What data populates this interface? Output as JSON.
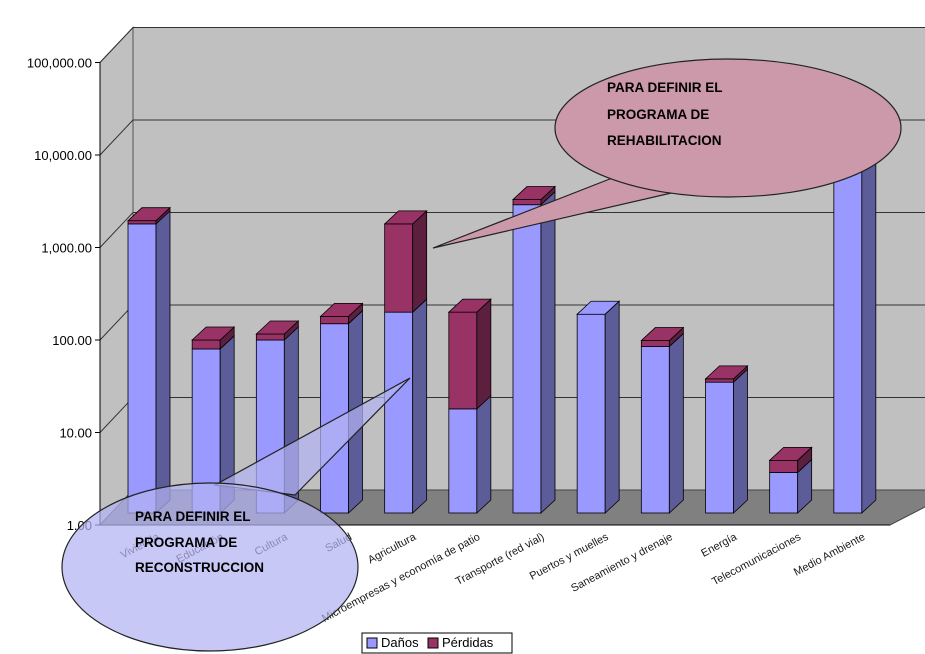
{
  "chart_data": {
    "type": "bar",
    "stacked": true,
    "y_scale": "log",
    "ylim": [
      1,
      100000
    ],
    "y_ticks": [
      "1.00",
      "10.00",
      "100.00",
      "1,000.00",
      "10,000.00",
      "100,000.00"
    ],
    "categories": [
      "Vivienda",
      "Educación",
      "Cultura",
      "Salud",
      "Agricultura",
      "Microempresas y economía de patio",
      "Transporte (red vial)",
      "Puertos y muelles",
      "Saneamiento y drenaje",
      "Energía",
      "Telecomunicaciones",
      "Medio Ambiente"
    ],
    "series": [
      {
        "name": "Daños",
        "color": "#9999ff",
        "values": [
          1800,
          80,
          100,
          150,
          200,
          18,
          2900,
          190,
          85,
          35,
          3.7,
          9500
        ]
      },
      {
        "name": "Pérdidas",
        "color": "#993366",
        "values": [
          1950,
          100,
          100,
          180,
          1800,
          200,
          3300,
          190,
          85,
          38,
          5,
          13000
        ]
      }
    ],
    "legend_position": "bottom",
    "grid": true,
    "annotations": [
      {
        "lines": [
          "PARA DEFINIR EL",
          "PROGRAMA DE",
          "REHABILITACION"
        ]
      },
      {
        "lines": [
          "PARA DEFINIR  EL",
          "PROGRAMA DE",
          "RECONSTRUCCION"
        ]
      }
    ]
  },
  "colors": {
    "wall": "#c0c0c0",
    "floor": "#808080",
    "danos_front": "#9999ff",
    "danos_side": "#5c5c99",
    "perdidas_front": "#993366",
    "perdidas_side": "#5c1f3d",
    "callout_top": "#cc99aa",
    "callout_bottom": "#b3b3f2"
  }
}
